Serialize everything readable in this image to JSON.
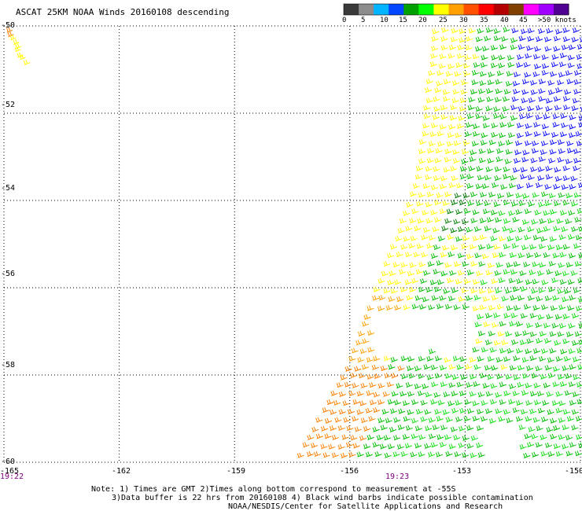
{
  "title": "ASCAT 25KM NOAA Winds 20160108 descending",
  "legend": {
    "labels": [
      "0",
      "5",
      "10",
      "15",
      "20",
      "25",
      "30",
      "35",
      "40",
      "45",
      ">50 knots"
    ],
    "colors": [
      "#3a3a3a",
      "#8c8c8c",
      "#00b4ff",
      "#0046ff",
      "#00a000",
      "#00ff00",
      "#ffff00",
      "#ffa000",
      "#ff5000",
      "#ff0000",
      "#b40000",
      "#804000",
      "#ff00ff",
      "#a000ff",
      "#500090"
    ]
  },
  "axes": {
    "lat_labels": [
      "-50",
      "-52",
      "-54",
      "-56",
      "-58",
      "-60"
    ],
    "lon_labels": [
      "-165",
      "-162",
      "-159",
      "-156",
      "-153",
      "-150"
    ]
  },
  "times": [
    "19:22",
    "19:23"
  ],
  "notes": {
    "line1": "Note: 1) Times are GMT 2)Times along bottom correspond to measurement at -55S",
    "line2": "3)Data buffer is 22 hrs from 20160108 4) Black wind barbs indicate possible contamination",
    "credit": "NOAA/NESDIS/Center for Satellite Applications and Research"
  }
}
